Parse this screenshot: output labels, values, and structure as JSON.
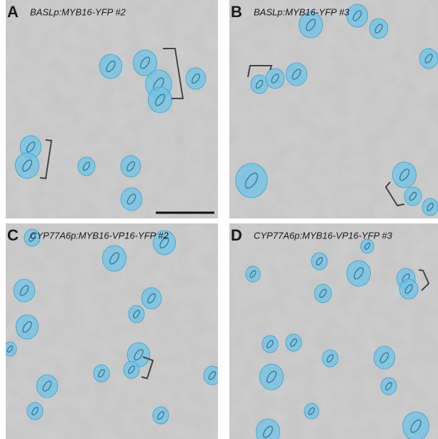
{
  "panels": [
    {
      "letter": "A",
      "label": "BASLp:MYB16-YFP #2"
    },
    {
      "letter": "B",
      "label": "BASLp:MYB16-YFP #3"
    },
    {
      "letter": "C",
      "label": "CYP77A6p:MYB16-VP16-YFP #2"
    },
    {
      "letter": "D",
      "label": "CYP77A6p:MYB16-VP16-YFP #3"
    }
  ]
}
